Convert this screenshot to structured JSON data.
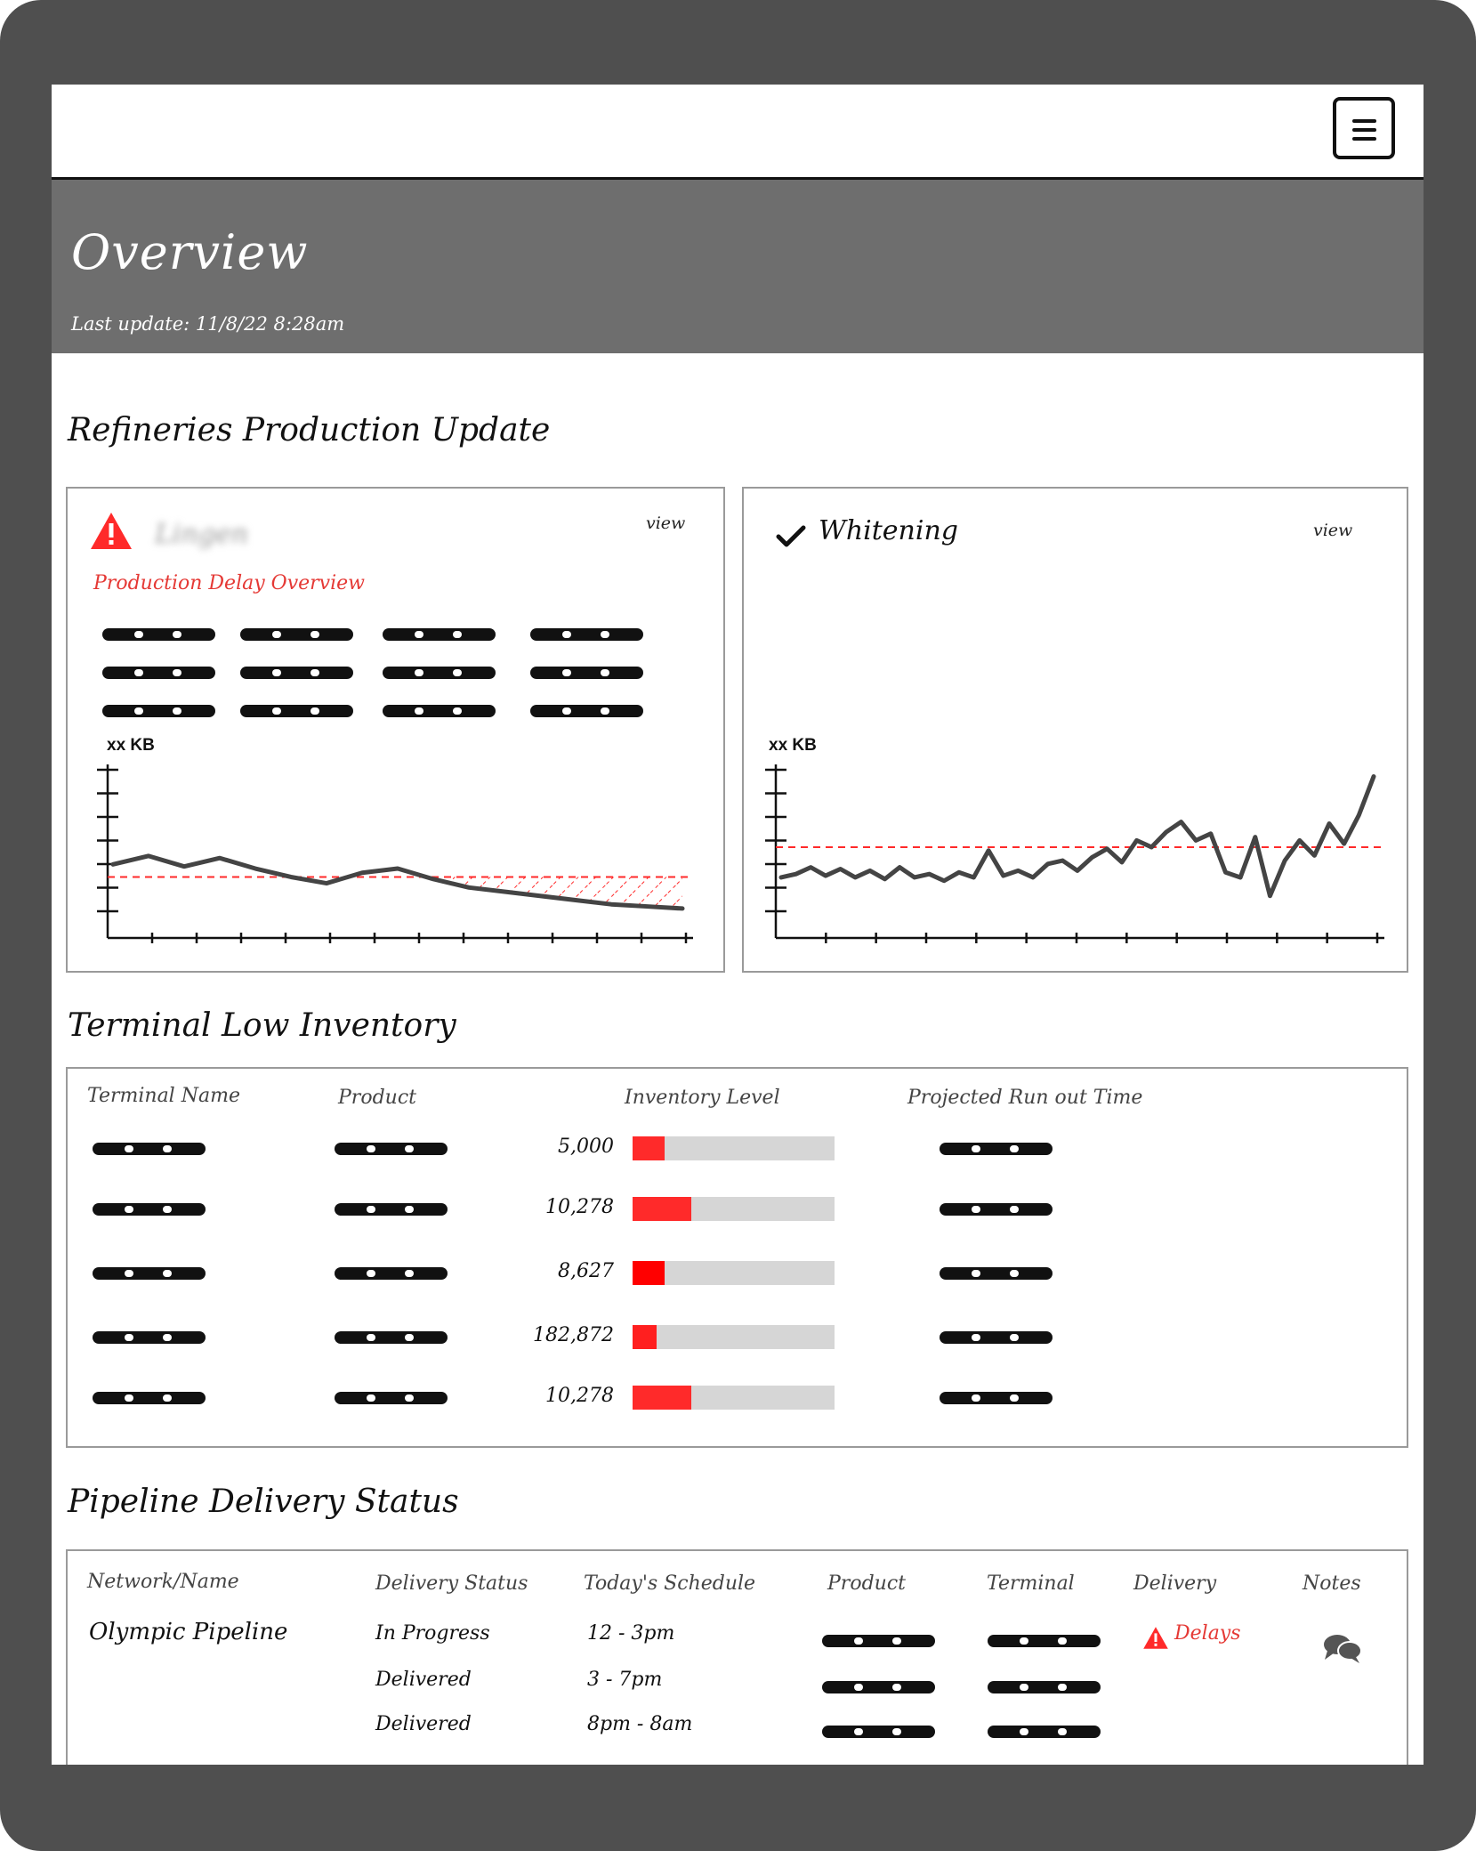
{
  "header": {
    "menu_icon": "hamburger-menu-icon"
  },
  "overview": {
    "title": "Overview",
    "last_update": "Last update:  11/8/22    8:28am"
  },
  "refineries": {
    "title": "Refineries Production Update",
    "cards": [
      {
        "name": "Lingen",
        "status_icon": "warning-triangle-icon",
        "status_color": "#ff2a2a",
        "view_label": "view",
        "subtitle": "Production Delay Overview",
        "y_label": "xx KB",
        "chart_data": {
          "type": "line",
          "series": [
            {
              "name": "production",
              "values": [
                3.5,
                3.9,
                3.4,
                3.8,
                3.3,
                2.9,
                2.6,
                3.1,
                3.3,
                2.8,
                2.4,
                2.2,
                2.0,
                1.8,
                1.6,
                1.5,
                1.4
              ]
            }
          ],
          "threshold": 2.9,
          "ylim": [
            0,
            8
          ],
          "x_ticks": 13,
          "y_ticks": 7
        }
      },
      {
        "name": "Whitening",
        "status_icon": "checkmark-icon",
        "status_color": "#111111",
        "view_label": "view",
        "y_label": "xx KB",
        "chart_data": {
          "type": "line",
          "series": [
            {
              "name": "production",
              "values": [
                3.6,
                3.8,
                4.2,
                3.7,
                4.1,
                3.6,
                4.0,
                3.5,
                4.2,
                3.6,
                3.8,
                3.4,
                3.9,
                3.6,
                5.2,
                3.7,
                4.0,
                3.6,
                4.4,
                4.6,
                4.0,
                4.8,
                5.3,
                4.5,
                5.8,
                5.4,
                6.3,
                6.9,
                5.8,
                6.2,
                3.9,
                3.6,
                6.0,
                2.5,
                4.6,
                5.8,
                4.9,
                6.8,
                5.6,
                7.3,
                9.6
              ]
            }
          ],
          "threshold": 5.4,
          "ylim": [
            0,
            10
          ],
          "x_ticks": 12,
          "y_ticks": 7
        }
      }
    ]
  },
  "terminal": {
    "title": "Terminal Low Inventory",
    "columns": [
      "Terminal Name",
      "Product",
      "Inventory Level",
      "Projected Run out Time"
    ],
    "rows": [
      {
        "level": "5,000",
        "fill_pct": 16,
        "color": "#ff2a2a"
      },
      {
        "level": "10,278",
        "fill_pct": 29,
        "color": "#ff2a2a"
      },
      {
        "level": "8,627",
        "fill_pct": 16,
        "color": "#ff0000"
      },
      {
        "level": "182,872",
        "fill_pct": 12,
        "color": "#ff1f1f"
      },
      {
        "level": "10,278",
        "fill_pct": 29,
        "color": "#ff2a2a"
      }
    ]
  },
  "pipeline": {
    "title": "Pipeline Delivery Status",
    "columns": [
      "Network/Name",
      "Delivery Status",
      "Today's Schedule",
      "Product",
      "Terminal",
      "Delivery",
      "Notes"
    ],
    "network": "Olympic Pipeline",
    "rows": [
      {
        "status": "In Progress",
        "schedule": "12 - 3pm",
        "delivery": "Delays",
        "delivery_icon": "warning-triangle-icon",
        "notes_icon": "chat-bubbles-icon"
      },
      {
        "status": "Delivered",
        "schedule": "3 - 7pm",
        "delivery": ""
      },
      {
        "status": "Delivered",
        "schedule": "8pm - 8am",
        "delivery": ""
      }
    ]
  }
}
